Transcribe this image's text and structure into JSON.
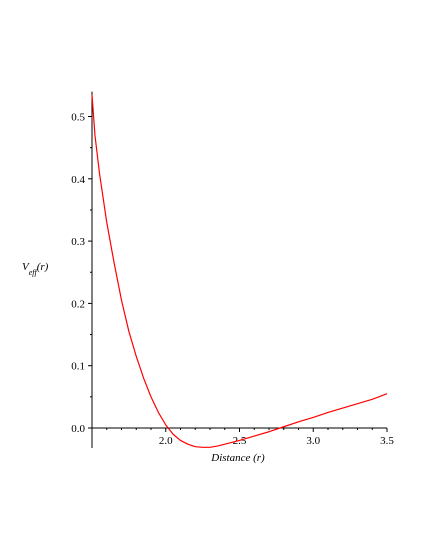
{
  "chart_data": {
    "type": "line",
    "xlabel": "Distance (r)",
    "ylabel": "V_eff(r)",
    "xlim": [
      1.5,
      3.5
    ],
    "ylim": [
      -0.03,
      0.54
    ],
    "x_ticks": [
      2.0,
      2.5,
      3.0,
      3.5
    ],
    "x_tick_labels": [
      "2.0",
      "2.5",
      "3.0",
      "3.5"
    ],
    "y_ticks": [
      0.0,
      0.1,
      0.2,
      0.3,
      0.4,
      0.5
    ],
    "y_tick_labels": [
      "0.0",
      "0.1",
      "0.2",
      "0.3",
      "0.4",
      "0.5"
    ],
    "grid": false,
    "legend": "none",
    "series": [
      {
        "color": "#ff0000",
        "x": [
          1.5,
          1.52,
          1.55,
          1.6,
          1.65,
          1.7,
          1.75,
          1.8,
          1.85,
          1.9,
          1.95,
          2.0,
          2.05,
          2.1,
          2.15,
          2.2,
          2.25,
          2.3,
          2.35,
          2.4,
          2.5,
          2.6,
          2.7,
          2.8,
          2.9,
          3.0,
          3.1,
          3.2,
          3.3,
          3.4,
          3.5
        ],
        "y": [
          0.535,
          0.47,
          0.41,
          0.33,
          0.265,
          0.205,
          0.155,
          0.115,
          0.08,
          0.05,
          0.025,
          0.005,
          -0.01,
          -0.02,
          -0.026,
          -0.03,
          -0.031,
          -0.031,
          -0.029,
          -0.026,
          -0.02,
          -0.013,
          -0.006,
          0.002,
          0.01,
          0.017,
          0.025,
          0.032,
          0.039,
          0.046,
          0.055
        ]
      }
    ]
  }
}
